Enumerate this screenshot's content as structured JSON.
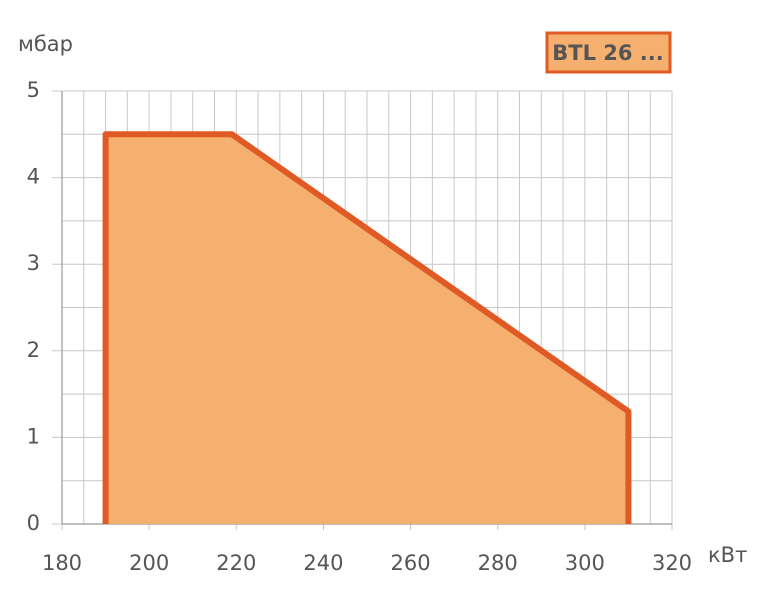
{
  "chart_data": {
    "type": "area",
    "y_label": "мбар",
    "x_label": "кВт",
    "series": [
      {
        "name": "BTL 26 ...",
        "color": "#f5b06f",
        "edge_color": "#e05a25",
        "x": [
          190,
          190,
          219,
          310,
          310
        ],
        "values": [
          0,
          4.5,
          4.5,
          1.3,
          0
        ]
      }
    ],
    "xlim": [
      180,
      320
    ],
    "xticks": [
      180,
      200,
      220,
      240,
      260,
      280,
      300,
      320
    ],
    "ylim": [
      0,
      5
    ],
    "yticks": [
      0,
      1,
      2,
      3,
      4,
      5
    ],
    "grid": true,
    "legend": "top-right"
  }
}
